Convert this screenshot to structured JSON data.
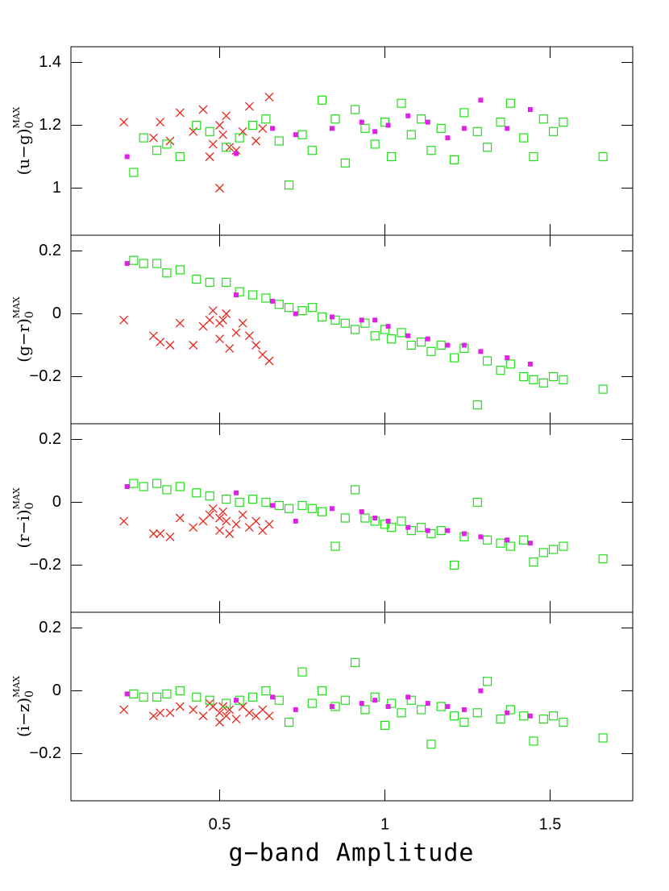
{
  "x_label": "g−band Amplitude",
  "chart_data": [
    {
      "type": "scatter",
      "y_label": {
        "text": "(u−g)",
        "sub": "0",
        "sup": "MAX"
      },
      "xlim": [
        0.05,
        1.75
      ],
      "xticks": [
        0.5,
        1,
        1.5
      ],
      "ylim": [
        0.85,
        1.45
      ],
      "yticks": [
        1,
        1.2,
        1.4
      ],
      "series": [
        {
          "marker": "cross",
          "color": "#e8241a",
          "x": [
            0.21,
            0.3,
            0.32,
            0.35,
            0.38,
            0.42,
            0.45,
            0.47,
            0.48,
            0.5,
            0.5,
            0.51,
            0.52,
            0.53,
            0.55,
            0.57,
            0.59,
            0.61,
            0.63,
            0.65
          ],
          "y": [
            1.21,
            1.16,
            1.21,
            1.15,
            1.24,
            1.18,
            1.25,
            1.1,
            1.14,
            1.2,
            1.0,
            1.17,
            1.23,
            1.13,
            1.12,
            1.18,
            1.26,
            1.15,
            1.19,
            1.29
          ]
        },
        {
          "marker": "open-square",
          "color": "#22e01a",
          "x": [
            0.24,
            0.27,
            0.31,
            0.34,
            0.38,
            0.43,
            0.47,
            0.52,
            0.56,
            0.6,
            0.64,
            0.68,
            0.71,
            0.75,
            0.78,
            0.81,
            0.85,
            0.88,
            0.91,
            0.94,
            0.97,
            1.0,
            1.02,
            1.05,
            1.08,
            1.11,
            1.14,
            1.17,
            1.21,
            1.24,
            1.28,
            1.31,
            1.35,
            1.38,
            1.42,
            1.45,
            1.48,
            1.51,
            1.54,
            1.66
          ],
          "y": [
            1.05,
            1.16,
            1.12,
            1.14,
            1.1,
            1.2,
            1.18,
            1.13,
            1.16,
            1.2,
            1.22,
            1.15,
            1.01,
            1.17,
            1.12,
            1.28,
            1.22,
            1.08,
            1.25,
            1.19,
            1.14,
            1.21,
            1.1,
            1.27,
            1.17,
            1.22,
            1.12,
            1.19,
            1.09,
            1.24,
            1.18,
            1.13,
            1.21,
            1.27,
            1.16,
            1.1,
            1.22,
            1.18,
            1.21,
            1.1
          ]
        },
        {
          "marker": "filled-square",
          "color": "#e020e8",
          "x": [
            0.22,
            0.55,
            0.66,
            0.73,
            0.84,
            0.93,
            0.97,
            1.01,
            1.07,
            1.13,
            1.19,
            1.24,
            1.29,
            1.37,
            1.44
          ],
          "y": [
            1.1,
            1.11,
            1.19,
            1.17,
            1.19,
            1.21,
            1.18,
            1.2,
            1.23,
            1.21,
            1.16,
            1.19,
            1.28,
            1.19,
            1.25
          ]
        }
      ]
    },
    {
      "type": "scatter",
      "y_label": {
        "text": "(g−r)",
        "sub": "0",
        "sup": "MAX"
      },
      "xlim": [
        0.05,
        1.75
      ],
      "xticks": [
        0.5,
        1,
        1.5
      ],
      "ylim": [
        -0.35,
        0.25
      ],
      "yticks": [
        {
          "value": -0.2,
          "label": "−0.2"
        },
        0,
        0.2
      ],
      "series": [
        {
          "marker": "cross",
          "color": "#e8241a",
          "x": [
            0.21,
            0.3,
            0.32,
            0.35,
            0.38,
            0.42,
            0.45,
            0.47,
            0.48,
            0.5,
            0.5,
            0.51,
            0.52,
            0.53,
            0.55,
            0.57,
            0.59,
            0.61,
            0.63,
            0.65
          ],
          "y": [
            -0.02,
            -0.07,
            -0.09,
            -0.1,
            -0.03,
            -0.1,
            -0.04,
            -0.02,
            0.01,
            -0.03,
            -0.08,
            -0.02,
            0.0,
            -0.11,
            -0.06,
            -0.03,
            -0.07,
            -0.1,
            -0.13,
            -0.15
          ]
        },
        {
          "marker": "open-square",
          "color": "#22e01a",
          "x": [
            0.24,
            0.27,
            0.31,
            0.34,
            0.38,
            0.43,
            0.47,
            0.52,
            0.56,
            0.6,
            0.64,
            0.68,
            0.71,
            0.75,
            0.78,
            0.81,
            0.85,
            0.88,
            0.91,
            0.94,
            0.97,
            1.0,
            1.02,
            1.05,
            1.08,
            1.11,
            1.14,
            1.17,
            1.21,
            1.24,
            1.28,
            1.31,
            1.35,
            1.38,
            1.42,
            1.45,
            1.48,
            1.51,
            1.54,
            1.66
          ],
          "y": [
            0.17,
            0.16,
            0.16,
            0.13,
            0.14,
            0.11,
            0.1,
            0.1,
            0.07,
            0.06,
            0.05,
            0.03,
            0.02,
            0.01,
            0.02,
            -0.01,
            -0.02,
            -0.03,
            -0.05,
            -0.03,
            -0.07,
            -0.05,
            -0.08,
            -0.06,
            -0.1,
            -0.09,
            -0.12,
            -0.1,
            -0.14,
            -0.11,
            -0.29,
            -0.15,
            -0.18,
            -0.16,
            -0.2,
            -0.21,
            -0.22,
            -0.2,
            -0.21,
            -0.24
          ]
        },
        {
          "marker": "filled-square",
          "color": "#e020e8",
          "x": [
            0.22,
            0.55,
            0.66,
            0.73,
            0.84,
            0.93,
            0.97,
            1.01,
            1.07,
            1.13,
            1.19,
            1.24,
            1.29,
            1.37,
            1.44
          ],
          "y": [
            0.16,
            0.06,
            0.04,
            0.0,
            -0.01,
            -0.02,
            -0.02,
            -0.04,
            -0.07,
            -0.08,
            -0.1,
            -0.1,
            -0.12,
            -0.14,
            -0.16
          ]
        }
      ]
    },
    {
      "type": "scatter",
      "y_label": {
        "text": "(r−i)",
        "sub": "0",
        "sup": "MAX"
      },
      "xlim": [
        0.05,
        1.75
      ],
      "xticks": [
        0.5,
        1,
        1.5
      ],
      "ylim": [
        -0.35,
        0.25
      ],
      "yticks": [
        {
          "value": -0.2,
          "label": "−0.2"
        },
        0,
        0.2
      ],
      "series": [
        {
          "marker": "cross",
          "color": "#e8241a",
          "x": [
            0.21,
            0.3,
            0.32,
            0.35,
            0.38,
            0.42,
            0.45,
            0.47,
            0.48,
            0.5,
            0.5,
            0.51,
            0.52,
            0.53,
            0.55,
            0.57,
            0.59,
            0.61,
            0.63,
            0.65
          ],
          "y": [
            -0.06,
            -0.1,
            -0.1,
            -0.11,
            -0.05,
            -0.08,
            -0.06,
            -0.04,
            -0.02,
            -0.05,
            -0.09,
            -0.03,
            -0.06,
            -0.1,
            -0.07,
            -0.04,
            -0.08,
            -0.06,
            -0.09,
            -0.07
          ]
        },
        {
          "marker": "open-square",
          "color": "#22e01a",
          "x": [
            0.24,
            0.27,
            0.31,
            0.34,
            0.38,
            0.43,
            0.47,
            0.52,
            0.56,
            0.6,
            0.64,
            0.68,
            0.71,
            0.75,
            0.78,
            0.81,
            0.85,
            0.88,
            0.91,
            0.94,
            0.97,
            1.0,
            1.02,
            1.05,
            1.08,
            1.11,
            1.14,
            1.17,
            1.21,
            1.24,
            1.28,
            1.31,
            1.35,
            1.38,
            1.42,
            1.45,
            1.48,
            1.51,
            1.54,
            1.66
          ],
          "y": [
            0.06,
            0.05,
            0.06,
            0.04,
            0.05,
            0.03,
            0.02,
            0.01,
            0.0,
            0.01,
            0.0,
            -0.01,
            -0.02,
            -0.01,
            -0.02,
            -0.03,
            -0.14,
            -0.05,
            0.04,
            -0.05,
            -0.06,
            -0.07,
            -0.08,
            -0.06,
            -0.09,
            -0.08,
            -0.1,
            -0.09,
            -0.2,
            -0.11,
            0.0,
            -0.12,
            -0.13,
            -0.14,
            -0.12,
            -0.19,
            -0.16,
            -0.15,
            -0.14,
            -0.18
          ]
        },
        {
          "marker": "filled-square",
          "color": "#e020e8",
          "x": [
            0.22,
            0.55,
            0.66,
            0.73,
            0.84,
            0.93,
            0.97,
            1.01,
            1.07,
            1.13,
            1.19,
            1.24,
            1.29,
            1.37,
            1.44
          ],
          "y": [
            0.05,
            0.03,
            -0.01,
            -0.06,
            -0.02,
            -0.03,
            -0.05,
            -0.06,
            -0.08,
            -0.09,
            -0.09,
            -0.1,
            -0.11,
            -0.12,
            -0.13
          ]
        }
      ]
    },
    {
      "type": "scatter",
      "y_label": {
        "text": "(i−z)",
        "sub": "0",
        "sup": "MAX"
      },
      "xlim": [
        0.05,
        1.75
      ],
      "xticks": [
        0.5,
        1,
        1.5
      ],
      "ylim": [
        -0.35,
        0.25
      ],
      "yticks": [
        {
          "value": -0.2,
          "label": "−0.2"
        },
        0,
        0.2
      ],
      "series": [
        {
          "marker": "cross",
          "color": "#e8241a",
          "x": [
            0.21,
            0.3,
            0.32,
            0.35,
            0.38,
            0.42,
            0.45,
            0.47,
            0.48,
            0.5,
            0.5,
            0.51,
            0.52,
            0.53,
            0.55,
            0.57,
            0.59,
            0.61,
            0.63,
            0.65
          ],
          "y": [
            -0.06,
            -0.08,
            -0.07,
            -0.07,
            -0.05,
            -0.06,
            -0.08,
            -0.04,
            -0.05,
            -0.07,
            -0.1,
            -0.05,
            -0.08,
            -0.06,
            -0.09,
            -0.05,
            -0.07,
            -0.08,
            -0.06,
            -0.08
          ]
        },
        {
          "marker": "open-square",
          "color": "#22e01a",
          "x": [
            0.24,
            0.27,
            0.31,
            0.34,
            0.38,
            0.43,
            0.47,
            0.52,
            0.56,
            0.6,
            0.64,
            0.68,
            0.71,
            0.75,
            0.78,
            0.81,
            0.85,
            0.88,
            0.91,
            0.94,
            0.97,
            1.0,
            1.02,
            1.05,
            1.08,
            1.11,
            1.14,
            1.17,
            1.21,
            1.24,
            1.28,
            1.31,
            1.35,
            1.38,
            1.42,
            1.45,
            1.48,
            1.51,
            1.54,
            1.66
          ],
          "y": [
            -0.01,
            -0.02,
            -0.02,
            -0.01,
            0.0,
            -0.02,
            -0.03,
            -0.04,
            -0.03,
            -0.02,
            0.0,
            -0.03,
            -0.1,
            0.06,
            -0.04,
            0.0,
            -0.05,
            -0.03,
            0.09,
            -0.06,
            -0.02,
            -0.11,
            -0.04,
            -0.07,
            -0.03,
            -0.06,
            -0.17,
            -0.05,
            -0.08,
            -0.1,
            -0.07,
            0.03,
            -0.09,
            -0.06,
            -0.08,
            -0.16,
            -0.09,
            -0.08,
            -0.1,
            -0.15
          ]
        },
        {
          "marker": "filled-square",
          "color": "#e020e8",
          "x": [
            0.22,
            0.55,
            0.66,
            0.73,
            0.84,
            0.93,
            0.97,
            1.01,
            1.07,
            1.13,
            1.19,
            1.24,
            1.29,
            1.37,
            1.44
          ],
          "y": [
            -0.01,
            -0.03,
            -0.02,
            -0.06,
            -0.05,
            -0.04,
            -0.03,
            -0.05,
            -0.02,
            -0.04,
            -0.05,
            -0.06,
            0.0,
            -0.07,
            -0.08
          ]
        }
      ]
    }
  ]
}
